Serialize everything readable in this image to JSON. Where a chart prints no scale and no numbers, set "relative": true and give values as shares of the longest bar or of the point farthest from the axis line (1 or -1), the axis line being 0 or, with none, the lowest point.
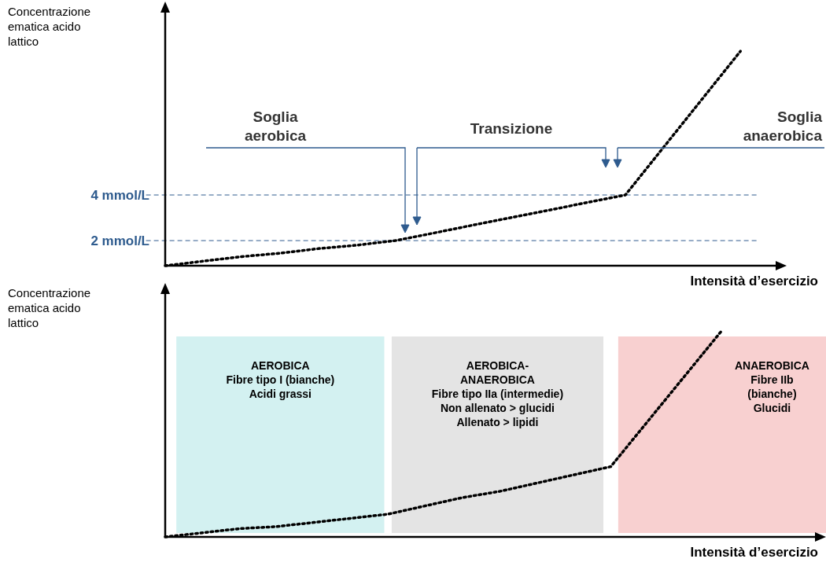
{
  "chart_data": [
    {
      "type": "line",
      "ylabel": "Concentrazione ematica acido lattico",
      "xlabel": "Intensità d’esercizio",
      "categories": [
        null,
        null,
        null,
        null,
        null,
        null,
        null,
        null,
        null,
        null,
        null,
        null,
        null,
        null,
        null,
        null
      ],
      "values": [
        0.9,
        1.1,
        1.3,
        1.45,
        1.65,
        1.8,
        2,
        2.33,
        2.67,
        3,
        3.33,
        3.67,
        4,
        6.1,
        8.2,
        10.3
      ],
      "color": "#000000",
      "line_style": "dotted",
      "ylim": [
        0.9,
        12.2
      ],
      "yticks": [
        {
          "value": 2,
          "label": "2 mmol/L"
        },
        {
          "value": 4,
          "label": "4 mmol/L"
        }
      ],
      "tick_labels": "y",
      "ref_lines": [
        {
          "axis": "y",
          "value": 2,
          "color": "#2e5b8e",
          "line_style": "dashed"
        },
        {
          "axis": "y",
          "value": 4,
          "color": "#2e5b8e",
          "line_style": "dashed"
        }
      ],
      "annotations": [
        "Soglia aerobica",
        "Transizione",
        "Soglia anaerobica"
      ]
    },
    {
      "type": "line",
      "relative": true,
      "ylabel": "Concentrazione ematica acido lattico",
      "xlabel": "Intensità d’esercizio",
      "categories": [
        null,
        null,
        null,
        null,
        null,
        null,
        null,
        null,
        null,
        null,
        null,
        null,
        null,
        null,
        null,
        null
      ],
      "values": [
        0,
        0.02,
        0.04,
        0.05,
        0.07,
        0.09,
        0.11,
        0.15,
        0.19,
        0.22,
        0.26,
        0.3,
        0.34,
        0.56,
        0.78,
        1
      ],
      "color": "#000000",
      "line_style": "dotted",
      "tick_labels": false,
      "annotations": [
        "AEROBICA\nFibre tipo I (bianche)\nAcidi grassi",
        "AEROBICA-\nANAEROBICA\nFibre tipo IIa (intermedie)\nNon allenato > glucidi\nAllenato > lipidi",
        "ANAEROBICA\nFibre IIb\n(bianche)\nGlucidi"
      ]
    }
  ]
}
